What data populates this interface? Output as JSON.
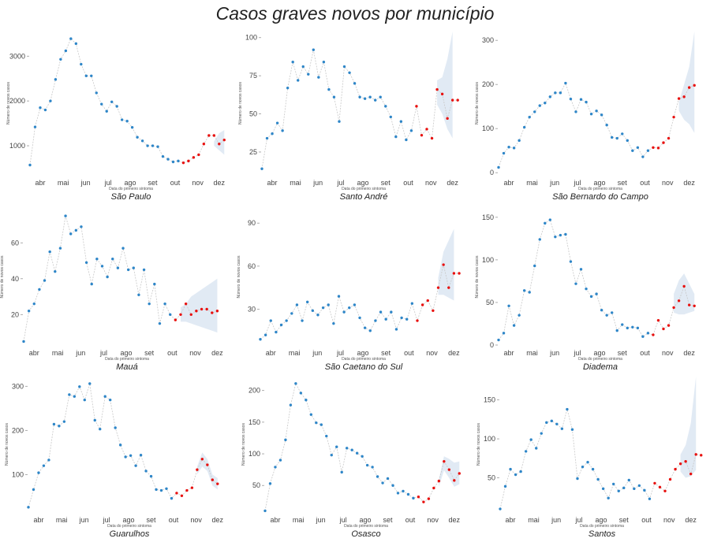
{
  "title": "Casos graves novos por município",
  "colors": {
    "observed": "#2E86C8",
    "projected": "#E8110F",
    "band": "#DCE6F2",
    "line": "#C8C8C8"
  },
  "chart_data": [
    {
      "type": "line",
      "title": "São Paulo",
      "xlabel": "Data do primeiro sintoma",
      "ylabel": "Número de novos casos",
      "x_ticks": [
        "abr",
        "mai",
        "jun",
        "jul",
        "ago",
        "set",
        "out",
        "nov",
        "dez"
      ],
      "y_ticks": [
        1000,
        2000,
        3000
      ],
      "ylim": [
        350,
        3550
      ],
      "xlim": [
        0,
        39.5
      ],
      "series": [
        {
          "values": [
            570,
            1420,
            1850,
            1800,
            2000,
            2480,
            2930,
            3120,
            3390,
            3280,
            2820,
            2560,
            2560,
            2180,
            1930,
            1770,
            1980,
            1880,
            1580,
            1550,
            1410,
            1190,
            1110,
            1000,
            1000,
            980,
            760,
            700,
            640,
            660
          ]
        },
        {
          "values": [
            620,
            660,
            740,
            800,
            1040,
            1230,
            1230,
            1040,
            1130
          ],
          "x_start": 30
        }
      ],
      "band": {
        "x_start": 36,
        "upper": [
          1100,
          1280,
          1350
        ],
        "lower": [
          1000,
          900,
          800
        ]
      }
    },
    {
      "type": "line",
      "title": "Santo André",
      "xlabel": "Data do primeiro sintoma",
      "ylabel": "Número de novos casos",
      "x_ticks": [
        "abr",
        "mai",
        "jun",
        "jul",
        "ago",
        "set",
        "out",
        "nov",
        "dez"
      ],
      "y_ticks": [
        25,
        50,
        75,
        100
      ],
      "ylim": [
        10,
        104
      ],
      "xlim": [
        0,
        39.5
      ],
      "series": [
        {
          "values": [
            14,
            34,
            37,
            44,
            39,
            67,
            84,
            72,
            81,
            76,
            92,
            74,
            84,
            66,
            61,
            45,
            81,
            77,
            70,
            61,
            60,
            61,
            59,
            61,
            55,
            48,
            35,
            45,
            33,
            39
          ]
        },
        {
          "values": [
            55,
            36,
            40,
            34,
            66,
            63,
            47,
            59,
            59
          ],
          "x_start": 30
        }
      ],
      "band": {
        "x_start": 34,
        "upper": [
          72,
          74,
          86,
          104
        ],
        "lower": [
          56,
          50,
          40,
          34
        ]
      }
    },
    {
      "type": "line",
      "title": "São Bernardo do Campo",
      "xlabel": "Data do primeiro sintoma",
      "ylabel": "Número de novos casos",
      "x_ticks": [
        "abr",
        "mai",
        "jun",
        "jul",
        "ago",
        "set",
        "out",
        "nov",
        "dez"
      ],
      "y_ticks": [
        0,
        100,
        200,
        300
      ],
      "ylim": [
        -5,
        320
      ],
      "xlim": [
        0,
        39.5
      ],
      "series": [
        {
          "values": [
            12,
            44,
            58,
            56,
            73,
            103,
            126,
            138,
            152,
            158,
            172,
            181,
            181,
            203,
            167,
            138,
            166,
            160,
            133,
            140,
            131,
            108,
            80,
            78,
            88,
            73,
            50,
            57,
            36,
            50
          ]
        },
        {
          "values": [
            57,
            56,
            68,
            78,
            126,
            168,
            172,
            193,
            198
          ],
          "x_start": 30
        }
      ],
      "band": {
        "x_start": 35,
        "upper": [
          160,
          200,
          240,
          320
        ],
        "lower": [
          140,
          120,
          110,
          90
        ]
      }
    },
    {
      "type": "line",
      "title": "Mauá",
      "xlabel": "Data do primeiro sintoma",
      "ylabel": "Número de novos casos",
      "x_ticks": [
        "abr",
        "mai",
        "jun",
        "jul",
        "ago",
        "set",
        "out",
        "nov",
        "dez"
      ],
      "y_ticks": [
        20,
        40,
        60
      ],
      "ylim": [
        3,
        79
      ],
      "xlim": [
        0,
        39.5
      ],
      "series": [
        {
          "values": [
            5,
            22,
            26,
            34,
            39,
            55,
            44,
            57,
            75,
            65,
            67,
            69,
            49,
            37,
            51,
            47,
            41,
            51,
            46,
            57,
            45,
            46,
            31,
            45,
            26,
            37,
            15,
            26,
            20
          ]
        },
        {
          "values": [
            17,
            20,
            26,
            20,
            22,
            23,
            23,
            21,
            22
          ],
          "x_start": 29
        }
      ],
      "band": {
        "x_start": 30,
        "upper": [
          24,
          26,
          30,
          32,
          34,
          36,
          38,
          40
        ],
        "lower": [
          16,
          16,
          15,
          14,
          13,
          12,
          11,
          10
        ]
      }
    },
    {
      "type": "line",
      "title": "São Caetano do Sul",
      "xlabel": "Data do primeiro sintoma",
      "ylabel": "Número de novos casos",
      "x_ticks": [
        "abr",
        "mai",
        "jun",
        "jul",
        "ago",
        "set",
        "out",
        "nov",
        "dez"
      ],
      "y_ticks": [
        30,
        60,
        90
      ],
      "ylim": [
        5,
        100
      ],
      "xlim": [
        0,
        39.5
      ],
      "series": [
        {
          "values": [
            9,
            12,
            22,
            14,
            19,
            22,
            27,
            33,
            22,
            35,
            29,
            26,
            31,
            33,
            20,
            39,
            28,
            31,
            33,
            24,
            17,
            15,
            22,
            28,
            23,
            28,
            16,
            24,
            23,
            34
          ]
        },
        {
          "values": [
            22,
            33,
            36,
            29,
            45,
            61,
            45,
            55,
            55
          ],
          "x_start": 30
        }
      ],
      "band": {
        "x_start": 34,
        "upper": [
          52,
          70,
          78,
          86
        ],
        "lower": [
          40,
          40,
          38,
          36
        ]
      }
    },
    {
      "type": "line",
      "title": "Diadema",
      "xlabel": "Data do primeiro sintoma",
      "ylabel": "Número de novos casos",
      "x_ticks": [
        "abr",
        "mai",
        "jun",
        "jul",
        "ago",
        "set",
        "out",
        "nov",
        "dez"
      ],
      "y_ticks": [
        0,
        50,
        100,
        150
      ],
      "ylim": [
        0,
        160
      ],
      "xlim": [
        0,
        39.5
      ],
      "series": [
        {
          "values": [
            6,
            14,
            46,
            23,
            35,
            64,
            62,
            93,
            124,
            143,
            147,
            127,
            129,
            130,
            98,
            72,
            89,
            66,
            57,
            60,
            41,
            35,
            38,
            17,
            24,
            20,
            21,
            20,
            10,
            14
          ]
        },
        {
          "values": [
            12,
            29,
            19,
            23,
            44,
            52,
            69,
            47,
            46
          ],
          "x_start": 30
        }
      ],
      "band": {
        "x_start": 34,
        "upper": [
          60,
          76,
          84,
          72,
          60
        ],
        "lower": [
          38,
          36,
          36,
          38,
          40
        ]
      }
    },
    {
      "type": "line",
      "title": "Guarulhos",
      "xlabel": "Data do primeiro sintoma",
      "ylabel": "Número de novos casos",
      "x_ticks": [
        "abr",
        "mai",
        "jun",
        "jul",
        "ago",
        "set",
        "out",
        "nov",
        "dez"
      ],
      "y_ticks": [
        100,
        200,
        300
      ],
      "ylim": [
        15,
        322
      ],
      "xlim": [
        0,
        39.5
      ],
      "series": [
        {
          "values": [
            26,
            66,
            104,
            120,
            133,
            214,
            210,
            220,
            281,
            277,
            299,
            269,
            306,
            223,
            203,
            277,
            269,
            206,
            167,
            140,
            143,
            120,
            144,
            108,
            96,
            66,
            64,
            68,
            46
          ]
        },
        {
          "values": [
            58,
            52,
            64,
            70,
            111,
            135,
            122,
            88,
            79
          ],
          "x_start": 29
        }
      ],
      "band": {
        "x_start": 33,
        "upper": [
          118,
          150,
          135,
          100,
          92
        ],
        "lower": [
          100,
          118,
          108,
          75,
          66
        ]
      }
    },
    {
      "type": "line",
      "title": "Osasco",
      "xlabel": "Data do primeiro sintoma",
      "ylabel": "Número de novos casos",
      "x_ticks": [
        "abr",
        "mai",
        "jun",
        "jul",
        "ago",
        "set",
        "out",
        "nov",
        "dez"
      ],
      "y_ticks": [
        50,
        100,
        150,
        200
      ],
      "ylim": [
        8,
        222
      ],
      "xlim": [
        0,
        39.5
      ],
      "series": [
        {
          "values": [
            10,
            53,
            79,
            90,
            122,
            177,
            211,
            196,
            185,
            162,
            149,
            146,
            128,
            98,
            111,
            71,
            109,
            106,
            101,
            96,
            82,
            79,
            64,
            54,
            61,
            50,
            38,
            41,
            36,
            30
          ]
        },
        {
          "values": [
            32,
            24,
            29,
            46,
            57,
            88,
            75,
            58,
            69
          ],
          "x_start": 30
        }
      ],
      "band": {
        "x_start": 34,
        "upper": [
          60,
          96,
          92,
          86,
          88
        ],
        "lower": [
          48,
          74,
          62,
          48,
          52
        ]
      }
    },
    {
      "type": "line",
      "title": "Santos",
      "xlabel": "Data do primeiro sintoma",
      "ylabel": "Número de novos casos",
      "x_ticks": [
        "abr",
        "mai",
        "jun",
        "jul",
        "ago",
        "set",
        "out",
        "nov",
        "dez"
      ],
      "y_ticks": [
        50,
        100,
        150
      ],
      "ylim": [
        6,
        180
      ],
      "xlim": [
        0,
        39.5
      ],
      "series": [
        {
          "values": [
            10,
            39,
            61,
            54,
            58,
            84,
            99,
            88,
            107,
            121,
            123,
            119,
            113,
            138,
            112,
            49,
            64,
            70,
            61,
            48,
            36,
            24,
            42,
            33,
            37,
            47,
            36,
            40,
            34,
            23
          ]
        },
        {
          "values": [
            43,
            38,
            33,
            48,
            61,
            68,
            71,
            55,
            80,
            79
          ],
          "x_start": 30
        }
      ],
      "band": {
        "x_start": 35,
        "upper": [
          80,
          92,
          120,
          180
        ],
        "lower": [
          58,
          50,
          52,
          60
        ]
      }
    }
  ]
}
